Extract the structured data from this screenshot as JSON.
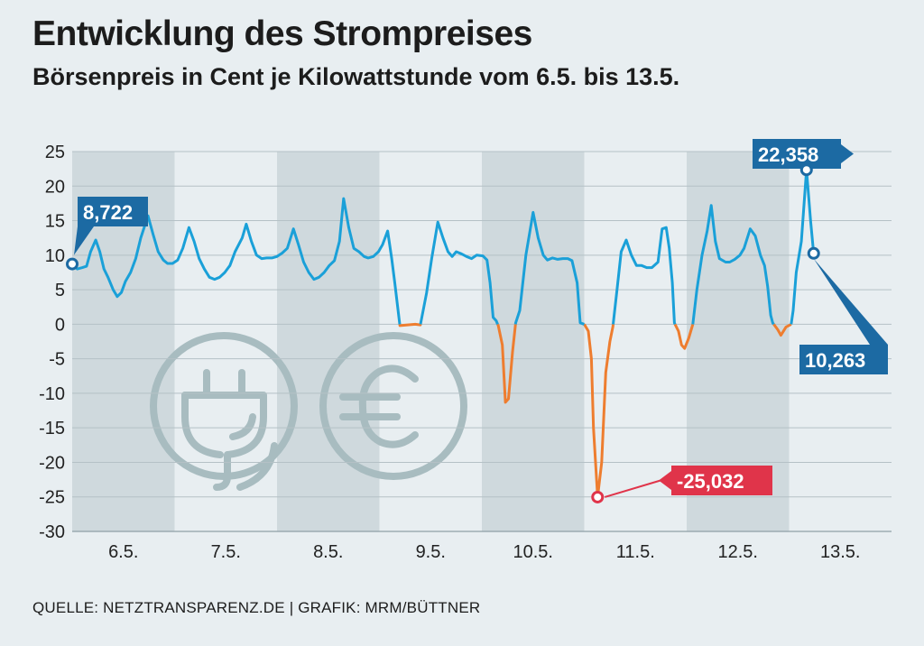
{
  "title": "Entwicklung des Strompreises",
  "subtitle": "Börsenpreis in Cent je Kilowattstunde vom 6.5. bis 13.5.",
  "source": "QUELLE: NETZTRANSPARENZ.DE | GRAFIK: MRM/BÜTTNER",
  "colors": {
    "background": "#e8eef1",
    "band": "#cfd9dd",
    "positive_line": "#1aa0d8",
    "negative_line": "#ee7d2f",
    "label_blue": "#1c6aa3",
    "label_red": "#e0344a",
    "icon": "#a8bcc0",
    "grid": "#b5c1c6"
  },
  "icons": [
    "plug-icon",
    "euro-icon"
  ],
  "chart_data": {
    "type": "line",
    "ylim": [
      -30,
      25
    ],
    "yticks": [
      25,
      20,
      15,
      10,
      5,
      0,
      -5,
      -10,
      -15,
      -20,
      -25,
      -30
    ],
    "grid": true,
    "categories": [
      "6.5.",
      "7.5.",
      "8.5.",
      "9.5.",
      "10.5.",
      "11.5.",
      "12.5.",
      "13.5."
    ],
    "alternating_day_bands": true,
    "xlim": [
      0,
      8
    ],
    "x_unit": "days from 6.5. 0:00",
    "points": [
      [
        0.0,
        8.7
      ],
      [
        0.05,
        8.0
      ],
      [
        0.1,
        8.2
      ],
      [
        0.14,
        8.4
      ],
      [
        0.18,
        10.5
      ],
      [
        0.23,
        12.2
      ],
      [
        0.27,
        10.5
      ],
      [
        0.31,
        8.0
      ],
      [
        0.35,
        6.8
      ],
      [
        0.4,
        5.0
      ],
      [
        0.44,
        4.0
      ],
      [
        0.48,
        4.6
      ],
      [
        0.52,
        6.2
      ],
      [
        0.57,
        7.5
      ],
      [
        0.62,
        9.5
      ],
      [
        0.67,
        12.5
      ],
      [
        0.74,
        15.7
      ],
      [
        0.79,
        13.0
      ],
      [
        0.84,
        10.5
      ],
      [
        0.89,
        9.3
      ],
      [
        0.93,
        8.8
      ],
      [
        0.98,
        8.8
      ],
      [
        1.03,
        9.3
      ],
      [
        1.08,
        11.0
      ],
      [
        1.14,
        14.0
      ],
      [
        1.19,
        12.0
      ],
      [
        1.24,
        9.5
      ],
      [
        1.29,
        8.0
      ],
      [
        1.34,
        6.8
      ],
      [
        1.39,
        6.5
      ],
      [
        1.44,
        6.8
      ],
      [
        1.49,
        7.5
      ],
      [
        1.54,
        8.5
      ],
      [
        1.59,
        10.5
      ],
      [
        1.66,
        12.5
      ],
      [
        1.7,
        14.5
      ],
      [
        1.75,
        12.0
      ],
      [
        1.8,
        10.0
      ],
      [
        1.85,
        9.5
      ],
      [
        1.9,
        9.6
      ],
      [
        1.95,
        9.6
      ],
      [
        2.0,
        9.8
      ],
      [
        2.05,
        10.3
      ],
      [
        2.1,
        11.0
      ],
      [
        2.16,
        13.8
      ],
      [
        2.21,
        11.5
      ],
      [
        2.26,
        9.0
      ],
      [
        2.31,
        7.5
      ],
      [
        2.36,
        6.5
      ],
      [
        2.41,
        6.8
      ],
      [
        2.46,
        7.5
      ],
      [
        2.51,
        8.5
      ],
      [
        2.56,
        9.2
      ],
      [
        2.61,
        12.0
      ],
      [
        2.65,
        18.2
      ],
      [
        2.7,
        14.0
      ],
      [
        2.75,
        11.0
      ],
      [
        2.8,
        10.5
      ],
      [
        2.85,
        9.8
      ],
      [
        2.89,
        9.6
      ],
      [
        2.94,
        9.8
      ],
      [
        2.99,
        10.5
      ],
      [
        3.03,
        11.5
      ],
      [
        3.08,
        13.5
      ],
      [
        3.12,
        9.5
      ],
      [
        3.15,
        6.0
      ],
      [
        3.2,
        -0.2
      ],
      [
        3.35,
        0.0
      ],
      [
        3.4,
        -0.1
      ],
      [
        3.46,
        4.5
      ],
      [
        3.51,
        9.5
      ],
      [
        3.57,
        14.8
      ],
      [
        3.62,
        12.5
      ],
      [
        3.67,
        10.5
      ],
      [
        3.71,
        9.8
      ],
      [
        3.75,
        10.5
      ],
      [
        3.8,
        10.2
      ],
      [
        3.85,
        9.8
      ],
      [
        3.9,
        9.5
      ],
      [
        3.95,
        10.0
      ],
      [
        4.01,
        9.9
      ],
      [
        4.05,
        9.3
      ],
      [
        4.08,
        6.0
      ],
      [
        4.11,
        1.0
      ],
      [
        4.14,
        0.5
      ],
      [
        4.16,
        -0.2
      ],
      [
        4.2,
        -3.0
      ],
      [
        4.23,
        -11.3
      ],
      [
        4.26,
        -10.8
      ],
      [
        4.3,
        -4.0
      ],
      [
        4.33,
        0.2
      ],
      [
        4.37,
        2.0
      ],
      [
        4.43,
        10.0
      ],
      [
        4.5,
        16.2
      ],
      [
        4.55,
        12.5
      ],
      [
        4.6,
        10.0
      ],
      [
        4.64,
        9.3
      ],
      [
        4.69,
        9.6
      ],
      [
        4.74,
        9.4
      ],
      [
        4.79,
        9.5
      ],
      [
        4.84,
        9.5
      ],
      [
        4.88,
        9.2
      ],
      [
        4.93,
        6.0
      ],
      [
        4.96,
        0.2
      ],
      [
        5.0,
        0.0
      ],
      [
        5.04,
        -1.0
      ],
      [
        5.07,
        -5.0
      ],
      [
        5.09,
        -15.0
      ],
      [
        5.11,
        -20.0
      ],
      [
        5.13,
        -25.0
      ],
      [
        5.17,
        -20.0
      ],
      [
        5.21,
        -7.0
      ],
      [
        5.25,
        -2.5
      ],
      [
        5.28,
        -0.3
      ],
      [
        5.32,
        5.0
      ],
      [
        5.36,
        10.5
      ],
      [
        5.41,
        12.2
      ],
      [
        5.46,
        10.0
      ],
      [
        5.51,
        8.5
      ],
      [
        5.56,
        8.5
      ],
      [
        5.61,
        8.2
      ],
      [
        5.66,
        8.2
      ],
      [
        5.72,
        9.0
      ],
      [
        5.76,
        13.8
      ],
      [
        5.8,
        14.0
      ],
      [
        5.83,
        11.0
      ],
      [
        5.86,
        6.0
      ],
      [
        5.88,
        0.2
      ],
      [
        5.92,
        -1.0
      ],
      [
        5.95,
        -3.0
      ],
      [
        5.98,
        -3.5
      ],
      [
        6.02,
        -2.0
      ],
      [
        6.06,
        0.0
      ],
      [
        6.1,
        5.0
      ],
      [
        6.15,
        10.0
      ],
      [
        6.2,
        13.5
      ],
      [
        6.24,
        17.2
      ],
      [
        6.28,
        12.0
      ],
      [
        6.32,
        9.5
      ],
      [
        6.38,
        9.0
      ],
      [
        6.42,
        9.0
      ],
      [
        6.47,
        9.4
      ],
      [
        6.52,
        10.0
      ],
      [
        6.56,
        11.0
      ],
      [
        6.62,
        13.8
      ],
      [
        6.67,
        12.8
      ],
      [
        6.72,
        10.0
      ],
      [
        6.76,
        8.5
      ],
      [
        6.79,
        5.5
      ],
      [
        6.82,
        1.3
      ],
      [
        6.84,
        0.2
      ],
      [
        6.89,
        -0.8
      ],
      [
        6.92,
        -1.6
      ],
      [
        6.97,
        -0.4
      ],
      [
        7.02,
        0.0
      ],
      [
        7.04,
        2.0
      ],
      [
        7.07,
        7.5
      ],
      [
        7.12,
        12.0
      ],
      [
        7.17,
        22.358
      ],
      [
        7.21,
        15.0
      ],
      [
        7.24,
        10.263
      ]
    ],
    "annotations": [
      {
        "label": "8,722",
        "value": 8.722,
        "x": 0.0,
        "style": "blue"
      },
      {
        "label": "22,358",
        "value": 22.358,
        "x": 7.17,
        "style": "blue"
      },
      {
        "label": "10,263",
        "value": 10.263,
        "x": 7.24,
        "style": "blue"
      },
      {
        "label": "-25,032",
        "value": -25.032,
        "x": 5.13,
        "style": "red"
      }
    ]
  }
}
